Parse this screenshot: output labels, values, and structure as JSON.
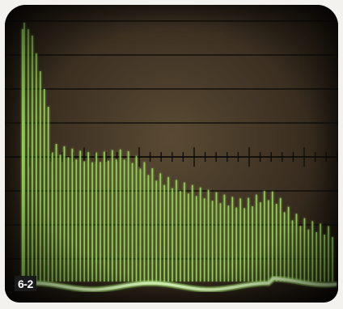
{
  "photo": {
    "label": "6-2",
    "subject": "oscilloscope-trace",
    "trace_color": "#9be35a",
    "graticule_color": "#0d0d0a"
  }
}
